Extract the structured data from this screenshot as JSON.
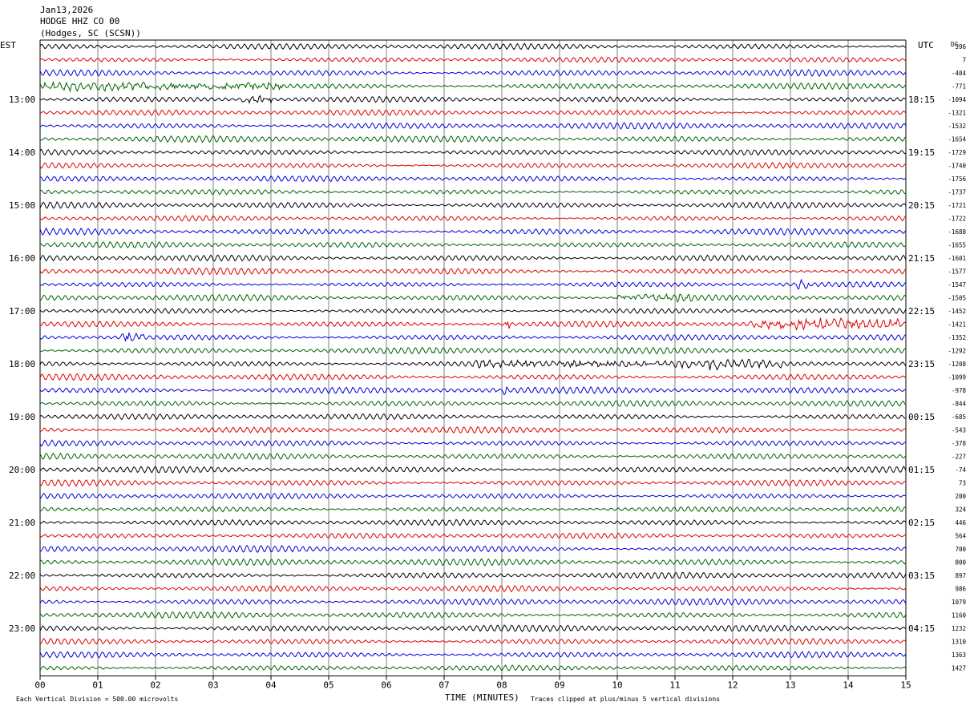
{
  "header": {
    "date": "Jan13,2026",
    "station": "HODGE HHZ CO 00",
    "location": "(Hodges, SC (SCSN))"
  },
  "labels": {
    "left_zone": "EST",
    "right_zone": "UTC",
    "dc_header": "DC",
    "x_axis_title": "TIME (MINUTES)",
    "footer_left": "Each Vertical Division =  500.00 microvolts",
    "footer_right": "Traces clipped at plus/minus 5 vertical divisions"
  },
  "colors": {
    "trace_cycle": [
      "#000000",
      "#e00000",
      "#0000dd",
      "#006400"
    ],
    "grid": "#000000",
    "background": "#ffffff"
  },
  "chart_data": {
    "type": "line",
    "subtype": "helicorder",
    "x_ticks": [
      "00",
      "01",
      "02",
      "03",
      "04",
      "05",
      "06",
      "07",
      "08",
      "09",
      "10",
      "11",
      "12",
      "13",
      "14",
      "15"
    ],
    "xlim": [
      0,
      15
    ],
    "minutes_per_trace": 15,
    "trace_count": 48,
    "left_hour_labels": [
      "13:00",
      "14:00",
      "15:00",
      "16:00",
      "17:00",
      "18:00",
      "19:00",
      "20:00",
      "21:00",
      "22:00",
      "23:00"
    ],
    "right_hour_labels": [
      "18:15",
      "19:15",
      "20:15",
      "21:15",
      "22:15",
      "23:15",
      "00:15",
      "01:15",
      "02:15",
      "03:15",
      "04:15"
    ],
    "first_labeled_trace_index": 4,
    "traces_per_hour": 4,
    "dc_offsets": [
      396,
      7,
      -404,
      -771,
      -1094,
      -1321,
      -1532,
      -1654,
      -1729,
      -1740,
      -1756,
      -1737,
      -1721,
      -1722,
      -1688,
      -1655,
      -1601,
      -1577,
      -1547,
      -1505,
      -1452,
      -1421,
      -1352,
      -1292,
      -1208,
      -1099,
      -978,
      -844,
      -685,
      -543,
      -378,
      -227,
      -74,
      73,
      200,
      324,
      446,
      564,
      700,
      800,
      897,
      986,
      1079,
      1160,
      1232,
      1310,
      1363,
      1427
    ],
    "events": [
      {
        "trace": 3,
        "start_min": 0.0,
        "end_min": 4.2,
        "amp": 1.6
      },
      {
        "trace": 4,
        "start_min": 3.5,
        "end_min": 4.0,
        "amp": 1.8
      },
      {
        "trace": 18,
        "start_min": 13.1,
        "end_min": 13.3,
        "amp": 3.0
      },
      {
        "trace": 19,
        "start_min": 10.0,
        "end_min": 11.3,
        "amp": 1.6
      },
      {
        "trace": 21,
        "start_min": 8.05,
        "end_min": 8.15,
        "amp": 3.0
      },
      {
        "trace": 21,
        "start_min": 12.3,
        "end_min": 14.9,
        "amp": 2.2
      },
      {
        "trace": 22,
        "start_min": 1.4,
        "end_min": 1.8,
        "amp": 2.0
      },
      {
        "trace": 23,
        "start_min": 6.8,
        "end_min": 6.85,
        "amp": 4.0
      },
      {
        "trace": 24,
        "start_min": 7.5,
        "end_min": 12.9,
        "amp": 1.5
      },
      {
        "trace": 24,
        "start_min": 11.6,
        "end_min": 11.75,
        "amp": 3.0
      },
      {
        "trace": 26,
        "start_min": 7.9,
        "end_min": 8.1,
        "amp": 2.2
      }
    ]
  }
}
